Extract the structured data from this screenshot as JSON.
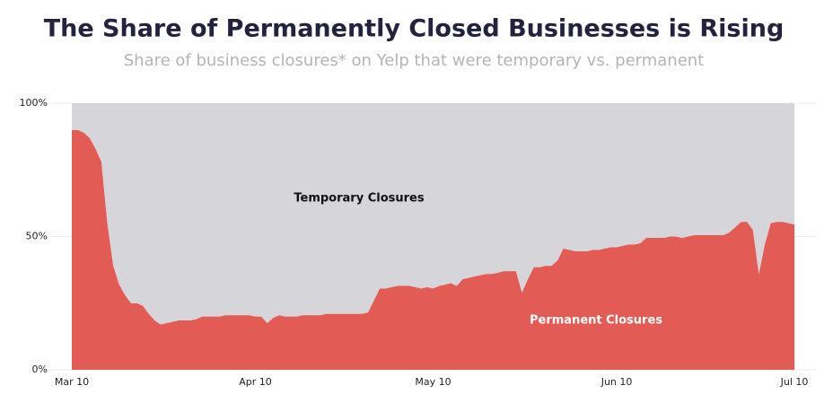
{
  "chart_data": {
    "type": "stacked_area",
    "title": "The Share of Permanently Closed Businesses is Rising",
    "subtitle": "Share of business closures* on Yelp that were temporary vs. permanent",
    "categories": [
      "Mar 10",
      null,
      null,
      null,
      null,
      null,
      null,
      null,
      null,
      null,
      null,
      null,
      null,
      null,
      null,
      null,
      null,
      null,
      null,
      null,
      null,
      null,
      null,
      null,
      null,
      null,
      null,
      null,
      null,
      null,
      null,
      "Apr 10",
      null,
      null,
      null,
      null,
      null,
      null,
      null,
      null,
      null,
      null,
      null,
      null,
      null,
      null,
      null,
      null,
      null,
      null,
      null,
      null,
      null,
      null,
      null,
      null,
      null,
      null,
      null,
      null,
      null,
      "May 10",
      null,
      null,
      null,
      null,
      null,
      null,
      null,
      null,
      null,
      null,
      null,
      null,
      null,
      null,
      null,
      null,
      null,
      null,
      null,
      null,
      null,
      null,
      null,
      null,
      null,
      null,
      null,
      null,
      null,
      null,
      "Jun 10",
      null,
      null,
      null,
      null,
      null,
      null,
      null,
      null,
      null,
      null,
      null,
      null,
      null,
      null,
      null,
      null,
      null,
      null,
      null,
      null,
      null,
      null,
      null,
      null,
      null,
      null,
      null,
      null,
      null,
      "Jul 10"
    ],
    "series": [
      {
        "name": "Permanent Closures",
        "color": "#e35b55",
        "values": [
          90,
          90,
          89,
          87,
          83,
          78,
          55,
          39,
          32,
          28,
          25,
          25,
          24,
          21,
          18.5,
          17,
          17.5,
          18,
          18.5,
          18.5,
          18.5,
          19,
          20,
          20,
          20,
          20,
          20.5,
          20.5,
          20.5,
          20.5,
          20.5,
          20,
          20,
          17.5,
          19.5,
          20.5,
          20,
          20,
          20,
          20.5,
          20.5,
          20.5,
          20.5,
          21,
          21,
          21,
          21,
          21,
          21,
          21,
          21.5,
          26,
          30.5,
          30.5,
          31,
          31.5,
          31.5,
          31.5,
          31,
          30.5,
          31,
          30.5,
          31.5,
          32,
          32.5,
          31.5,
          34,
          34.5,
          35,
          35.5,
          36,
          36,
          36.5,
          37,
          37,
          37,
          29,
          34,
          38.5,
          38.5,
          39,
          39,
          41,
          45.5,
          45,
          44.5,
          44.5,
          44.5,
          45,
          45,
          45.5,
          46,
          46,
          46.5,
          47,
          47,
          47.5,
          49.5,
          49.5,
          49.5,
          49.5,
          50,
          50,
          49.5,
          50,
          50.5,
          50.5,
          50.5,
          50.5,
          50.5,
          50.5,
          51.5,
          53.5,
          55.5,
          55.5,
          52.5,
          36,
          47,
          55,
          55.5,
          55.5,
          55,
          54.5
        ]
      },
      {
        "name": "Temporary Closures",
        "color": "#d6d5da",
        "values": [
          10,
          10,
          11,
          13,
          17,
          22,
          45,
          61,
          68,
          72,
          75,
          75,
          76,
          79,
          81.5,
          83,
          82.5,
          82,
          81.5,
          81.5,
          81.5,
          81,
          80,
          80,
          80,
          80,
          79.5,
          79.5,
          79.5,
          79.5,
          79.5,
          80,
          80,
          82.5,
          80.5,
          79.5,
          80,
          80,
          80,
          79.5,
          79.5,
          79.5,
          79.5,
          79,
          79,
          79,
          79,
          79,
          79,
          79,
          78.5,
          74,
          69.5,
          69.5,
          69,
          68.5,
          68.5,
          68.5,
          69,
          69.5,
          69,
          69.5,
          68.5,
          68,
          67.5,
          68.5,
          66,
          65.5,
          65,
          64.5,
          64,
          64,
          63.5,
          63,
          63,
          63,
          71,
          66,
          61.5,
          61.5,
          61,
          61,
          59,
          54.5,
          55,
          55.5,
          55.5,
          55.5,
          55,
          55,
          54.5,
          54,
          54,
          53.5,
          53,
          53,
          52.5,
          50.5,
          50.5,
          50.5,
          50.5,
          50,
          50,
          50.5,
          50,
          49.5,
          49.5,
          49.5,
          49.5,
          49.5,
          49.5,
          48.5,
          46.5,
          44.5,
          44.5,
          47.5,
          64,
          53,
          45,
          44.5,
          44.5,
          45,
          45.5
        ]
      }
    ],
    "ylim": [
      0,
      100
    ],
    "yticks": [
      {
        "value": 0,
        "label": "0%"
      },
      {
        "value": 50,
        "label": "50%"
      },
      {
        "value": 100,
        "label": "100%"
      }
    ],
    "grid": true
  }
}
